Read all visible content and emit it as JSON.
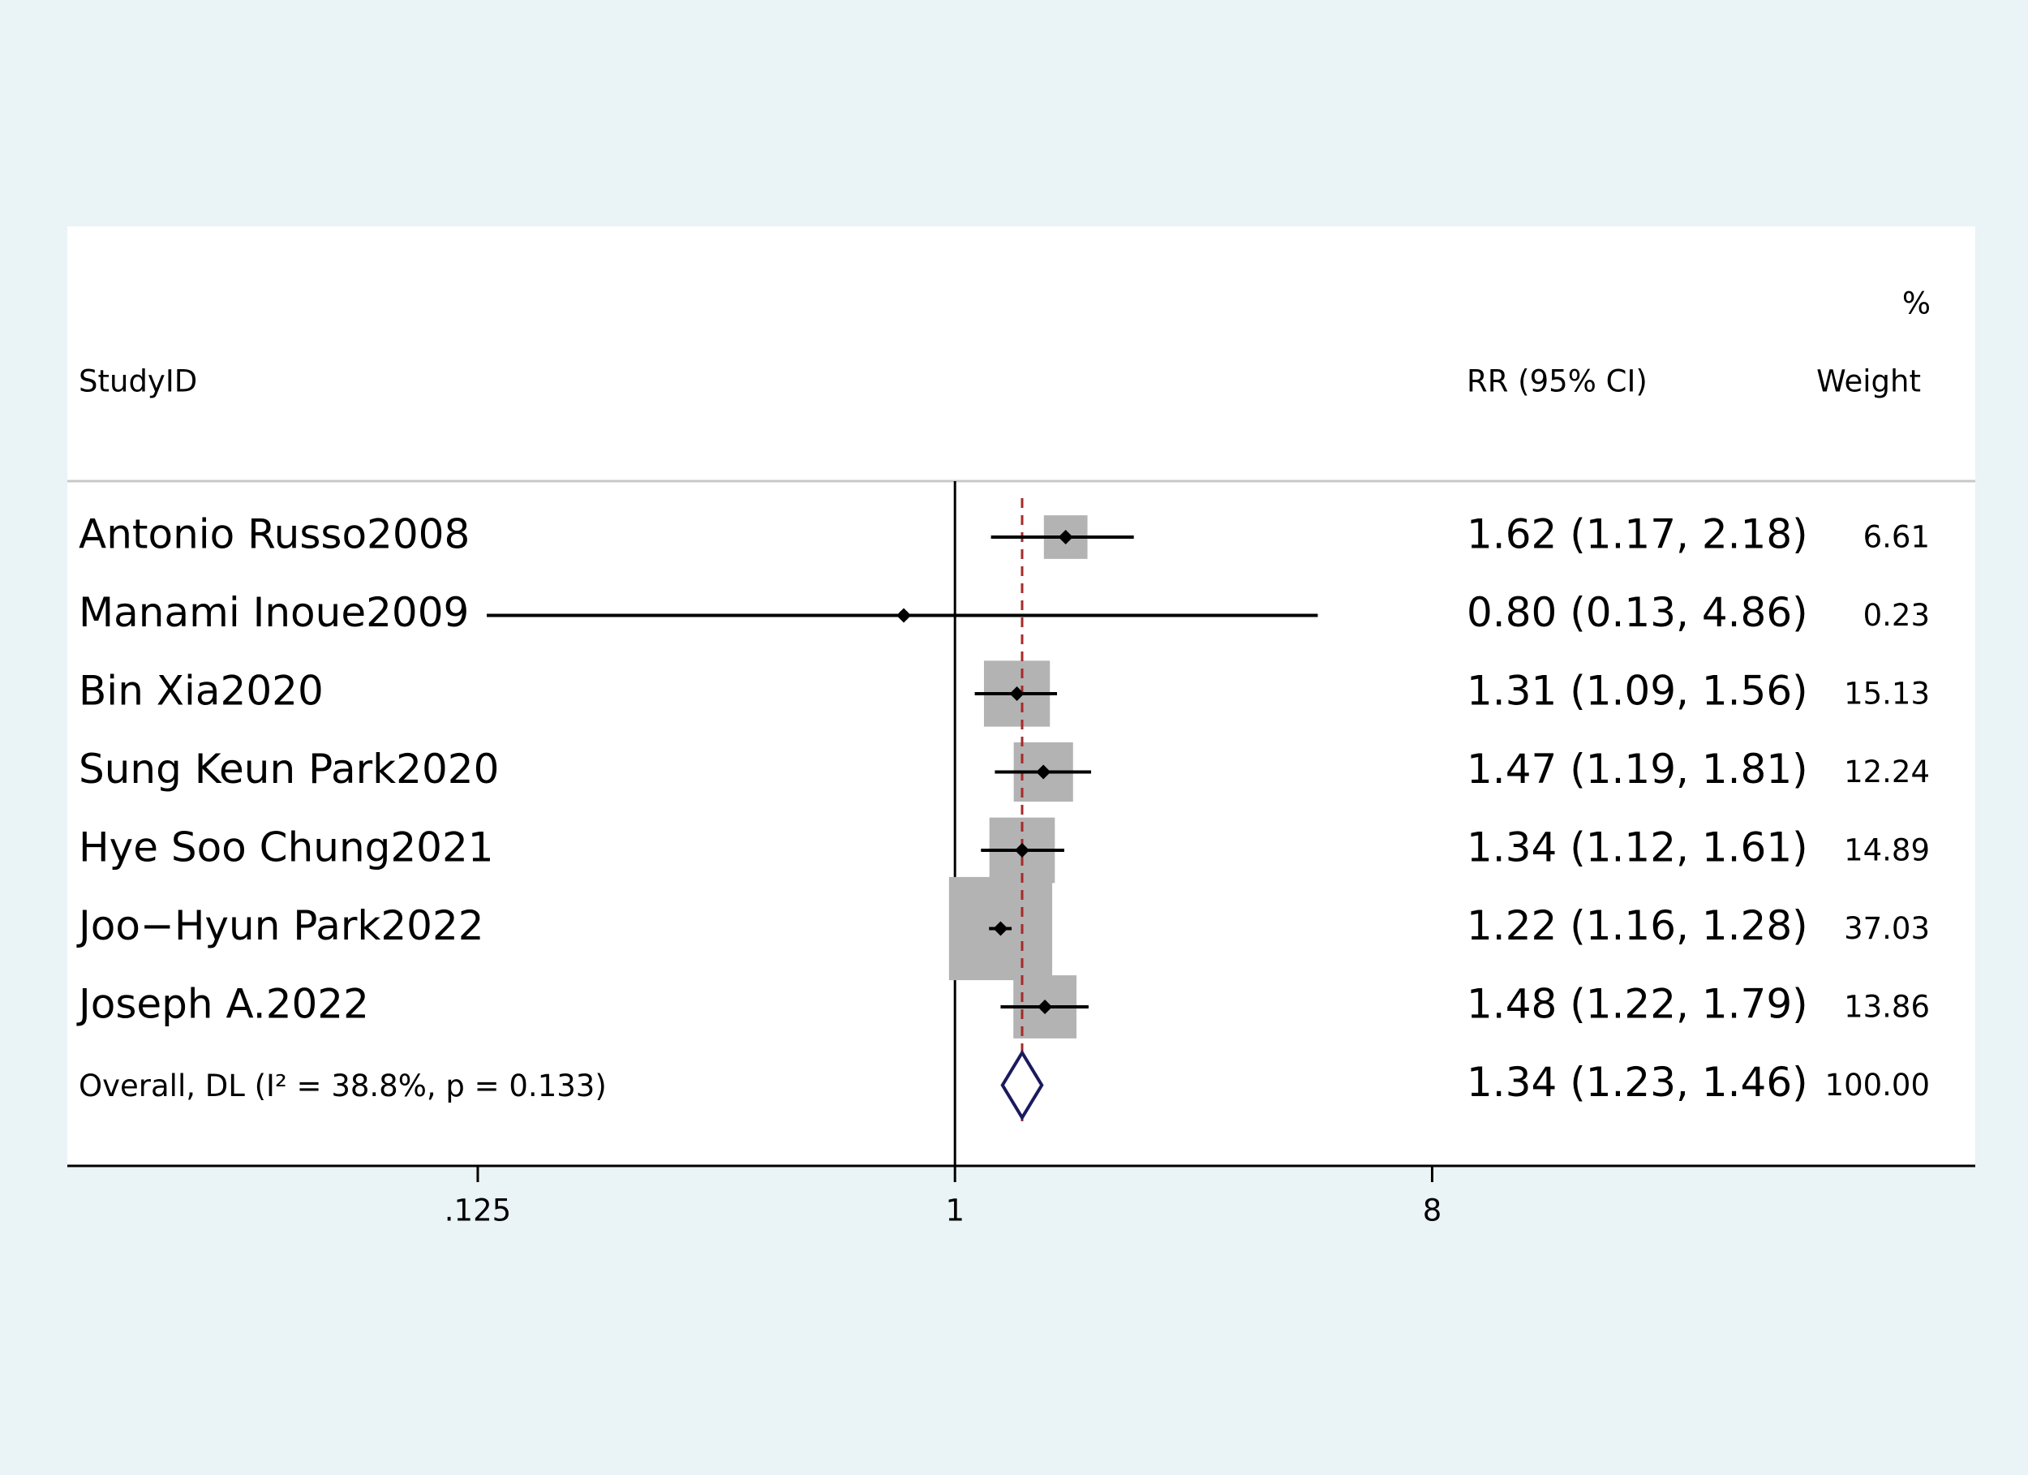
{
  "chart_data": {
    "type": "forest",
    "headers": {
      "study": "StudyID",
      "ci": "RR (95% CI)",
      "weight_unit": "%",
      "weight": "Weight"
    },
    "studies": [
      "Antonio Russo2008",
      "Manami Inoue2009",
      "Bin Xia2020",
      "Sung Keun Park2020",
      "Hye Soo Chung2021",
      "Joo−Hyun Park2022",
      "Joseph A.2022"
    ],
    "rr": [
      1.62,
      0.8,
      1.31,
      1.47,
      1.34,
      1.22,
      1.48
    ],
    "ci_low": [
      1.17,
      0.13,
      1.09,
      1.19,
      1.12,
      1.16,
      1.22
    ],
    "ci_high": [
      2.18,
      4.86,
      1.56,
      1.81,
      1.61,
      1.28,
      1.79
    ],
    "rr_labels": [
      "1.62 (1.17, 2.18)",
      "0.80 (0.13, 4.86)",
      "1.31 (1.09, 1.56)",
      "1.47 (1.19, 1.81)",
      "1.34 (1.12, 1.61)",
      "1.22 (1.16, 1.28)",
      "1.48 (1.22, 1.79)"
    ],
    "weights": [
      6.61,
      0.23,
      15.13,
      12.24,
      14.89,
      37.03,
      13.86
    ],
    "weight_labels": [
      "6.61",
      "0.23",
      "15.13",
      "12.24",
      "14.89",
      "37.03",
      "13.86"
    ],
    "overall": {
      "label": "Overall, DL (I² = 38.8%, p = 0.133)",
      "rr": 1.34,
      "ci_low": 1.23,
      "ci_high": 1.46,
      "rr_label": "1.34 (1.23, 1.46)",
      "weight_label": "100.00"
    },
    "xscale": "log",
    "xlim": [
      0.0209,
      85.3
    ],
    "xticks": [
      {
        "value": 0.125,
        "label": ".125"
      },
      1,
      8
    ],
    "null_line": 1,
    "colors": {
      "box": "#b3b3b3",
      "point": "#000000",
      "diamond": "#1a1a5e",
      "overall_line": "#a52a2a"
    }
  }
}
